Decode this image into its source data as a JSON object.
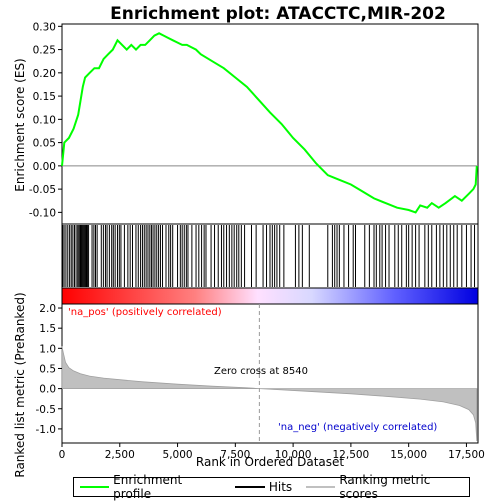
{
  "chart_data": {
    "type": "line",
    "title": "Enrichment plot: ATACCTC,MIR-202",
    "top_panel": {
      "ylabel": "Enrichment score (ES)",
      "ylim": [
        -0.125,
        0.305
      ],
      "yticks": [
        -0.1,
        -0.05,
        0.0,
        0.05,
        0.1,
        0.15,
        0.2,
        0.25,
        0.3
      ],
      "ytick_labels": [
        "-0.10",
        "-0.05",
        "0.00",
        "0.05",
        "0.10",
        "0.15",
        "0.20",
        "0.25",
        "0.30"
      ],
      "series": [
        {
          "name": "Enrichment profile",
          "color": "#00ff00",
          "x": [
            0,
            100,
            300,
            500,
            700,
            900,
            1000,
            1200,
            1400,
            1600,
            1800,
            2000,
            2200,
            2400,
            2600,
            2800,
            3000,
            3200,
            3400,
            3600,
            3800,
            4000,
            4200,
            4400,
            4600,
            4800,
            5000,
            5200,
            5400,
            5600,
            5800,
            6000,
            6500,
            7000,
            7500,
            8000,
            8540,
            9000,
            9500,
            10000,
            10500,
            11000,
            11500,
            12000,
            12500,
            13000,
            13500,
            14000,
            14500,
            15000,
            15300,
            15500,
            15800,
            16000,
            16300,
            16600,
            17000,
            17300,
            17600,
            17800,
            17900,
            17950
          ],
          "y": [
            0.0,
            0.05,
            0.06,
            0.08,
            0.11,
            0.17,
            0.19,
            0.2,
            0.21,
            0.21,
            0.23,
            0.24,
            0.25,
            0.27,
            0.26,
            0.25,
            0.26,
            0.25,
            0.26,
            0.26,
            0.27,
            0.28,
            0.285,
            0.28,
            0.275,
            0.27,
            0.265,
            0.26,
            0.26,
            0.255,
            0.25,
            0.24,
            0.225,
            0.21,
            0.19,
            0.17,
            0.14,
            0.115,
            0.09,
            0.06,
            0.035,
            0.005,
            -0.02,
            -0.03,
            -0.04,
            -0.055,
            -0.07,
            -0.08,
            -0.09,
            -0.095,
            -0.1,
            -0.085,
            -0.09,
            -0.08,
            -0.09,
            -0.08,
            -0.065,
            -0.075,
            -0.06,
            -0.05,
            -0.04,
            0.0
          ]
        }
      ]
    },
    "hits_panel": {
      "series_name": "Hits",
      "color": "#000000",
      "hit_positions": [
        30,
        90,
        170,
        250,
        330,
        400,
        470,
        540,
        610,
        680,
        730,
        780,
        820,
        860,
        900,
        940,
        980,
        1020,
        1060,
        1100,
        1150,
        1300,
        1380,
        1450,
        1520,
        1700,
        1790,
        1880,
        1950,
        2050,
        2150,
        2220,
        2300,
        2400,
        2480,
        2550,
        2700,
        2850,
        2950,
        3050,
        3200,
        3300,
        3400,
        3480,
        3560,
        3640,
        3720,
        3800,
        3870,
        3940,
        4020,
        4100,
        4180,
        4260,
        4350,
        4500,
        4620,
        4700,
        4790,
        5000,
        5120,
        5200,
        5290,
        5380,
        5450,
        5620,
        5800,
        5920,
        6040,
        6150,
        6230,
        6450,
        6600,
        6760,
        6900,
        7000,
        7120,
        7240,
        7350,
        7450,
        7560,
        7650,
        7760,
        7900,
        8200,
        8400,
        8700,
        8850,
        9000,
        9100,
        9200,
        9300,
        9420,
        9600,
        10100,
        10250,
        10400,
        10700,
        11500,
        11700,
        11800,
        11900,
        12000,
        12200,
        12400,
        12600,
        12700,
        13100,
        13300,
        13500,
        13600,
        13750,
        13850,
        14000,
        14150,
        14400,
        14550,
        14700,
        14900,
        15000,
        15150,
        15300,
        15450,
        15700,
        15850,
        16000,
        16200,
        16350,
        16500,
        16650,
        16800,
        16950,
        17100,
        17300,
        17500,
        17700,
        17850
      ]
    },
    "metric_panel": {
      "series_name": "Ranking metric scores",
      "color": "#c0c0c0",
      "xlabel": "Rank in Ordered Dataset",
      "ylabel": "Ranked list metric (PreRanked)",
      "ylim": [
        -1.35,
        2.1
      ],
      "yticks": [
        -1.0,
        -0.5,
        0.0,
        0.5,
        1.0,
        1.5,
        2.0
      ],
      "ytick_labels": [
        "-1.0",
        "-0.5",
        "0.0",
        "0.5",
        "1.0",
        "1.5",
        "2.0"
      ],
      "x": [
        0,
        50,
        150,
        300,
        500,
        800,
        1200,
        1800,
        2500,
        3500,
        5000,
        6500,
        8000,
        8540,
        9500,
        11000,
        12500,
        14000,
        15500,
        16500,
        17200,
        17600,
        17800,
        17900,
        17950
      ],
      "y": [
        1.05,
        0.9,
        0.65,
        0.52,
        0.44,
        0.37,
        0.31,
        0.26,
        0.22,
        0.17,
        0.11,
        0.06,
        0.02,
        0.0,
        -0.03,
        -0.08,
        -0.13,
        -0.19,
        -0.26,
        -0.33,
        -0.42,
        -0.52,
        -0.65,
        -0.85,
        -1.3
      ],
      "annotations": {
        "zero_cross": "Zero cross at 8540",
        "pos_label": "'na_pos' (positively correlated)",
        "neg_label": "'na_neg' (negatively correlated)"
      },
      "zero_cross_x": 8540
    },
    "xaxis": {
      "xlim": [
        0,
        18000
      ],
      "xticks": [
        0,
        2500,
        5000,
        7500,
        10000,
        12500,
        15000,
        17500
      ],
      "xtick_labels": [
        "0",
        "2,500",
        "5,000",
        "7,500",
        "10,000",
        "12,500",
        "15,000",
        "17,500"
      ]
    },
    "legend": [
      "Enrichment profile",
      "Hits",
      "Ranking metric scores"
    ],
    "colors": {
      "pos": "#ff0000",
      "neg": "#0000ff",
      "pos_label": "#ff0000",
      "neg_label": "#0000cc"
    }
  }
}
